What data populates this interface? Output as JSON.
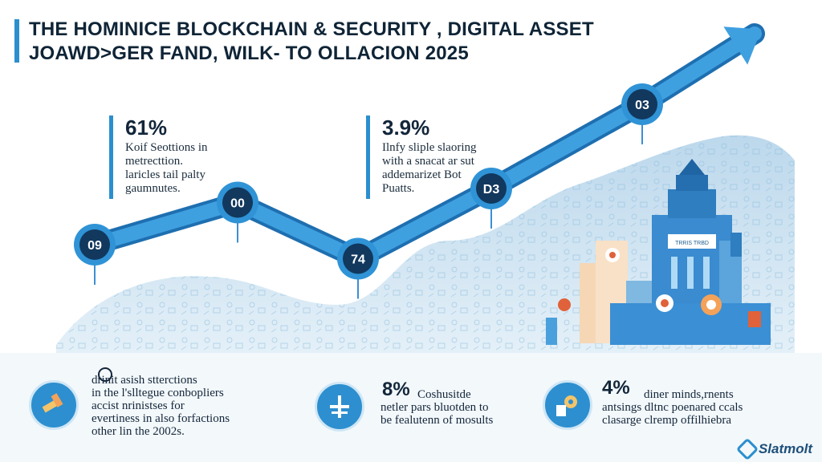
{
  "header": {
    "title_line1": "THE HOMINICE BLOCKCHAIN & SECURITY , DIGITAL ASSET",
    "title_line2": "JOAWD>GER FAND, WILK- TO OLLACION 2025"
  },
  "chart_data": {
    "type": "line",
    "title": "THE HOMINICE BLOCKCHAIN & SECURITY , DIGITAL ASSET JOAWD>GER FAND, WILK- TO OLLACION 2025",
    "xlabel": "",
    "ylabel": "",
    "points": [
      {
        "label": "09",
        "value": 30
      },
      {
        "label": "00",
        "value": 45
      },
      {
        "label": "74",
        "value": 25
      },
      {
        "label": "D3",
        "value": 50
      },
      {
        "label": "03",
        "value": 80
      }
    ],
    "ylim": [
      0,
      100
    ],
    "trend": "upward arrow"
  },
  "stats": [
    {
      "value": "61%",
      "lines": [
        "Koif Seottions in",
        "metrecttion.",
        "laricles tail palty",
        "gaumnutes."
      ]
    },
    {
      "value": "3.9%",
      "lines": [
        "Ilnfy sliple slaoring",
        "with a snacat ar sut",
        "addemarizet Bot",
        "Puatts."
      ]
    }
  ],
  "building": {
    "sign": "TRRIS TRBD"
  },
  "features": [
    {
      "icon": "hammer-gavel-icon",
      "badge": "",
      "lines": [
        "drinit asish stterctions",
        "in the l'slltegue conbopliers",
        "accist nrinistses for",
        "evertiness in also forfactions",
        "other lin the 2002s."
      ]
    },
    {
      "icon": "cross-shield-icon",
      "badge": "8%",
      "lines": [
        "Coshusitde",
        "netler pars bluotden to",
        "be fealutenn of mosults"
      ]
    },
    {
      "icon": "gear-document-icon",
      "badge": "4%",
      "lines": [
        "diner minds,rnents",
        "antsings dltnc poenared ccals",
        "clasarge clremp offilhiebra"
      ]
    }
  ],
  "brand": {
    "name": "Slatmolt"
  },
  "colors": {
    "primary": "#2b8fce",
    "dark": "#12385e",
    "mountain": "#cfe3f0"
  }
}
